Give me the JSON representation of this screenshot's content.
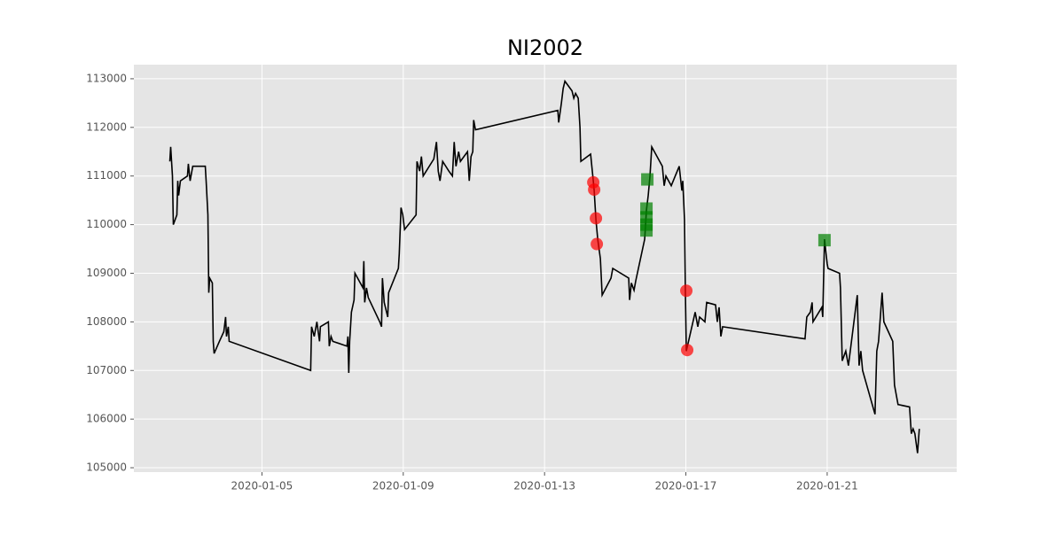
{
  "chart_data": {
    "type": "line",
    "title": "NI2002",
    "xlim": [
      "2020-01-01 09:00",
      "2020-01-24 16:00"
    ],
    "xticks": [
      "2020-01-05",
      "2020-01-09",
      "2020-01-13",
      "2020-01-17",
      "2020-01-21"
    ],
    "ylim": [
      104910,
      113290
    ],
    "yticks": [
      105000,
      106000,
      107000,
      108000,
      109000,
      110000,
      111000,
      112000,
      113000
    ],
    "grid": true,
    "background": "#e5e5e5",
    "series": [
      {
        "color": "#000000",
        "marker": "none",
        "x": [
          "2020-01-02 09:24",
          "2020-01-02 10:00",
          "2020-01-02 11:12",
          "2020-01-02 11:48",
          "2020-01-02 14:12",
          "2020-01-02 14:48",
          "2020-01-02 15:24",
          "2020-01-02 16:36",
          "2020-01-02 21:24",
          "2020-01-02 22:00",
          "2020-01-02 23:12",
          "2020-01-03 01:00",
          "2020-01-03 09:30",
          "2020-01-03 10:05",
          "2020-01-03 11:17",
          "2020-01-03 11:53",
          "2020-01-03 12:29",
          "2020-01-03 14:18",
          "2020-01-03 14:54",
          "2020-01-03 15:30",
          "2020-01-03 19:07",
          "2020-01-03 22:07",
          "2020-01-03 23:19",
          "2020-01-03 23:55",
          "2020-01-04 01:08",
          "2020-01-04 01:44",
          "2020-01-06 09:06",
          "2020-01-06 09:42",
          "2020-01-06 11:31",
          "2020-01-06 13:19",
          "2020-01-06 15:07",
          "2020-01-06 15:43",
          "2020-01-06 21:08",
          "2020-01-06 21:44",
          "2020-01-06 22:56",
          "2020-01-07 00:09",
          "2020-01-07 09:47",
          "2020-01-07 10:23",
          "2020-01-07 10:59",
          "2020-01-07 11:35",
          "2020-01-07 12:47",
          "2020-01-07 14:35",
          "2020-01-07 15:11",
          "2020-01-07 20:37",
          "2020-01-07 21:13",
          "2020-01-07 21:49",
          "2020-01-07 23:01",
          "2020-01-08 00:13",
          "2020-01-08 08:02",
          "2020-01-08 09:15",
          "2020-01-08 09:51",
          "2020-01-08 11:03",
          "2020-01-08 13:28",
          "2020-01-08 14:04",
          "2020-01-08 20:41",
          "2020-01-08 21:17",
          "2020-01-08 22:29",
          "2020-01-08 23:41",
          "2020-01-09 00:53",
          "2020-01-09 08:43",
          "2020-01-09 09:19",
          "2020-01-09 11:08",
          "2020-01-09 12:20",
          "2020-01-09 13:32",
          "2020-01-09 20:46",
          "2020-01-09 22:34",
          "2020-01-09 23:46",
          "2020-01-10 00:58",
          "2020-01-10 02:47",
          "2020-01-10 06:59",
          "2020-01-10 09:24",
          "2020-01-10 10:36",
          "2020-01-10 11:49",
          "2020-01-10 13:37",
          "2020-01-10 14:49",
          "2020-01-10 19:38",
          "2020-01-10 20:50",
          "2020-01-10 22:02",
          "2020-01-10 23:14",
          "2020-01-10 23:50",
          "2020-01-11 01:03",
          "2020-01-13 09:01",
          "2020-01-13 09:37",
          "2020-01-13 11:26",
          "2020-01-13 12:38",
          "2020-01-13 13:50",
          "2020-01-13 18:39",
          "2020-01-13 19:52",
          "2020-01-13 21:04",
          "2020-01-13 22:52",
          "2020-01-14 00:04",
          "2020-01-14 00:40",
          "2020-01-14 07:17",
          "2020-01-14 09:06",
          "2020-01-14 09:42",
          "2020-01-14 10:54",
          "2020-01-14 12:07",
          "2020-01-14 13:55",
          "2020-01-14 15:07",
          "2020-01-14 21:08",
          "2020-01-14 22:20",
          "2020-01-15 09:10",
          "2020-01-15 09:47",
          "2020-01-15 10:59",
          "2020-01-15 12:47",
          "2020-01-15 13:59",
          "2020-01-15 20:01",
          "2020-01-15 21:13",
          "2020-01-15 22:25",
          "2020-01-15 23:37",
          "2020-01-16 00:49",
          "2020-01-16 08:02",
          "2020-01-16 09:15",
          "2020-01-16 10:27",
          "2020-01-16 14:04",
          "2020-01-16 19:29",
          "2020-01-16 21:17",
          "2020-01-16 21:53",
          "2020-01-16 23:05",
          "2020-01-16 23:41",
          "2020-01-17 00:18",
          "2020-01-17 06:19",
          "2020-01-17 08:07",
          "2020-01-17 09:19",
          "2020-01-17 12:56",
          "2020-01-17 14:08",
          "2020-01-17 20:10",
          "2020-01-17 21:22",
          "2020-01-17 22:34",
          "2020-01-17 23:46",
          "2020-01-18 00:58",
          "2020-01-20 08:56",
          "2020-01-20 10:09",
          "2020-01-20 12:33",
          "2020-01-20 13:46",
          "2020-01-20 14:22",
          "2020-01-20 20:23",
          "2020-01-20 20:59",
          "2020-01-20 22:11",
          "2020-01-20 23:59",
          "2020-01-21 00:35",
          "2020-01-21 08:25",
          "2020-01-21 09:01",
          "2020-01-21 10:13",
          "2020-01-21 12:38",
          "2020-01-21 14:26",
          "2020-01-21 20:27",
          "2020-01-21 21:40",
          "2020-01-21 22:52",
          "2020-01-22 00:04",
          "2020-01-22 08:29",
          "2020-01-22 09:42",
          "2020-01-22 10:54",
          "2020-01-22 12:07",
          "2020-01-22 13:19",
          "2020-01-22 14:31",
          "2020-01-22 20:32",
          "2020-01-22 21:44",
          "2020-01-22 22:56",
          "2020-01-23 00:08",
          "2020-01-23 07:58",
          "2020-01-23 09:10",
          "2020-01-23 10:22",
          "2020-01-23 11:35",
          "2020-01-23 13:23",
          "2020-01-23 14:35"
        ],
        "values": [
          111300,
          111600,
          111000,
          110000,
          110200,
          110900,
          110600,
          110900,
          111000,
          111250,
          110900,
          111200,
          111200,
          110900,
          110200,
          108600,
          108900,
          108800,
          107600,
          107350,
          107600,
          107800,
          108100,
          107700,
          107900,
          107600,
          107000,
          107900,
          107700,
          108000,
          107600,
          107900,
          108000,
          107500,
          107700,
          107600,
          107500,
          107700,
          106950,
          107600,
          108200,
          108450,
          109000,
          108700,
          109250,
          108400,
          108700,
          108500,
          108000,
          107900,
          108900,
          108400,
          108100,
          108600,
          109100,
          109400,
          110350,
          110200,
          109900,
          110200,
          111300,
          111100,
          111400,
          111000,
          111350,
          111700,
          111100,
          110900,
          111300,
          111100,
          111000,
          111700,
          111200,
          111500,
          111300,
          111500,
          110900,
          111400,
          111500,
          112150,
          111950,
          112350,
          112100,
          112500,
          112800,
          112950,
          112750,
          112600,
          112700,
          112600,
          112000,
          111300,
          111450,
          110900,
          110700,
          110100,
          109700,
          109300,
          108550,
          108900,
          109100,
          108900,
          108450,
          108800,
          108650,
          108850,
          109700,
          110300,
          110600,
          111000,
          111600,
          111200,
          110800,
          111000,
          110800,
          111200,
          110700,
          110900,
          110100,
          108600,
          107400,
          108200,
          107900,
          108100,
          108000,
          108400,
          108350,
          108000,
          108300,
          107700,
          107900,
          107650,
          108100,
          108200,
          108400,
          108000,
          108300,
          108100,
          109700,
          109200,
          109100,
          109000,
          108700,
          107200,
          107400,
          107100,
          108550,
          107100,
          107400,
          107000,
          106100,
          107400,
          107600,
          108100,
          108600,
          108000,
          107600,
          106700,
          106500,
          106300,
          106250,
          105700,
          105800,
          105700,
          105300,
          105800
        ]
      },
      {
        "color": "#ff0000",
        "marker": "circle",
        "x": [
          "2020-01-14 09:06",
          "2020-01-14 09:42",
          "2020-01-14 10:54",
          "2020-01-14 11:30",
          "2020-01-17 00:18",
          "2020-01-17 00:54"
        ],
        "values": [
          110870,
          110720,
          110130,
          109600,
          108640,
          107420
        ]
      },
      {
        "color": "#008000",
        "marker": "square",
        "x": [
          "2020-01-15 21:49",
          "2020-01-15 21:13",
          "2020-01-15 21:13",
          "2020-01-15 21:13",
          "2020-01-15 21:13",
          "2020-01-20 22:11"
        ],
        "values": [
          110930,
          110330,
          110150,
          110000,
          109880,
          109680
        ]
      }
    ]
  }
}
